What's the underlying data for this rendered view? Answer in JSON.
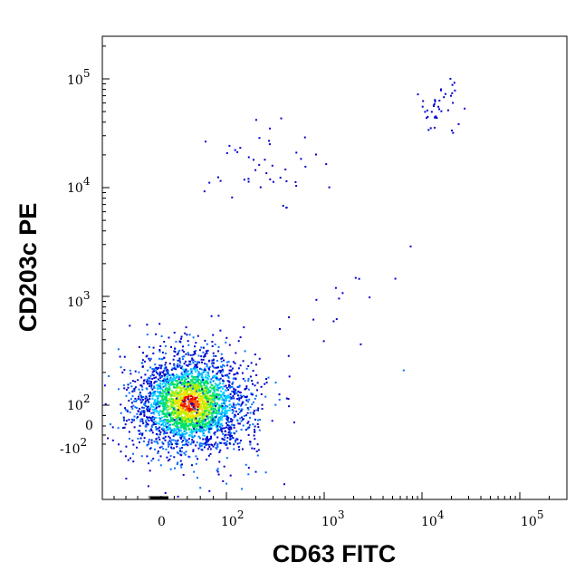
{
  "chart_data": {
    "type": "scatter",
    "style": "flow-cytometry density dot plot (blue-cyan-green-yellow-red by point density)",
    "xlabel": "CD63 FITC",
    "ylabel": "CD203c PE",
    "x_scale": "biexponential",
    "y_scale": "biexponential",
    "xlim": [
      -1000,
      200000
    ],
    "ylim": [
      -800,
      250000
    ],
    "x_ticks": [
      {
        "base": "0",
        "exp": ""
      },
      {
        "base": "10",
        "exp": "2"
      },
      {
        "base": "10",
        "exp": "3"
      },
      {
        "base": "10",
        "exp": "4"
      },
      {
        "base": "10",
        "exp": "5"
      }
    ],
    "y_ticks": [
      {
        "base": "-10",
        "exp": "2"
      },
      {
        "base": "0",
        "exp": ""
      },
      {
        "base": "10",
        "exp": "2"
      },
      {
        "base": "10",
        "exp": "3"
      },
      {
        "base": "10",
        "exp": "4"
      },
      {
        "base": "10",
        "exp": "5"
      }
    ],
    "grid": false,
    "legend": "none",
    "density_colors": [
      "#0000cc",
      "#0070ff",
      "#00d0ff",
      "#00e060",
      "#b0f000",
      "#ffe000",
      "#ff6000",
      "#e00000"
    ],
    "populations": [
      {
        "center": [
          60,
          110
        ],
        "spread": "main dense cluster",
        "count": 2600
      },
      {
        "center": [
          250,
          17000
        ],
        "spread": "sparse upper-left group",
        "count": 45
      },
      {
        "center": [
          15000,
          55000
        ],
        "spread": "upper-right group",
        "count": 40
      },
      {
        "center": [
          1500,
          1500
        ],
        "spread": "sparse diagonal bridge",
        "count": 18
      }
    ]
  }
}
